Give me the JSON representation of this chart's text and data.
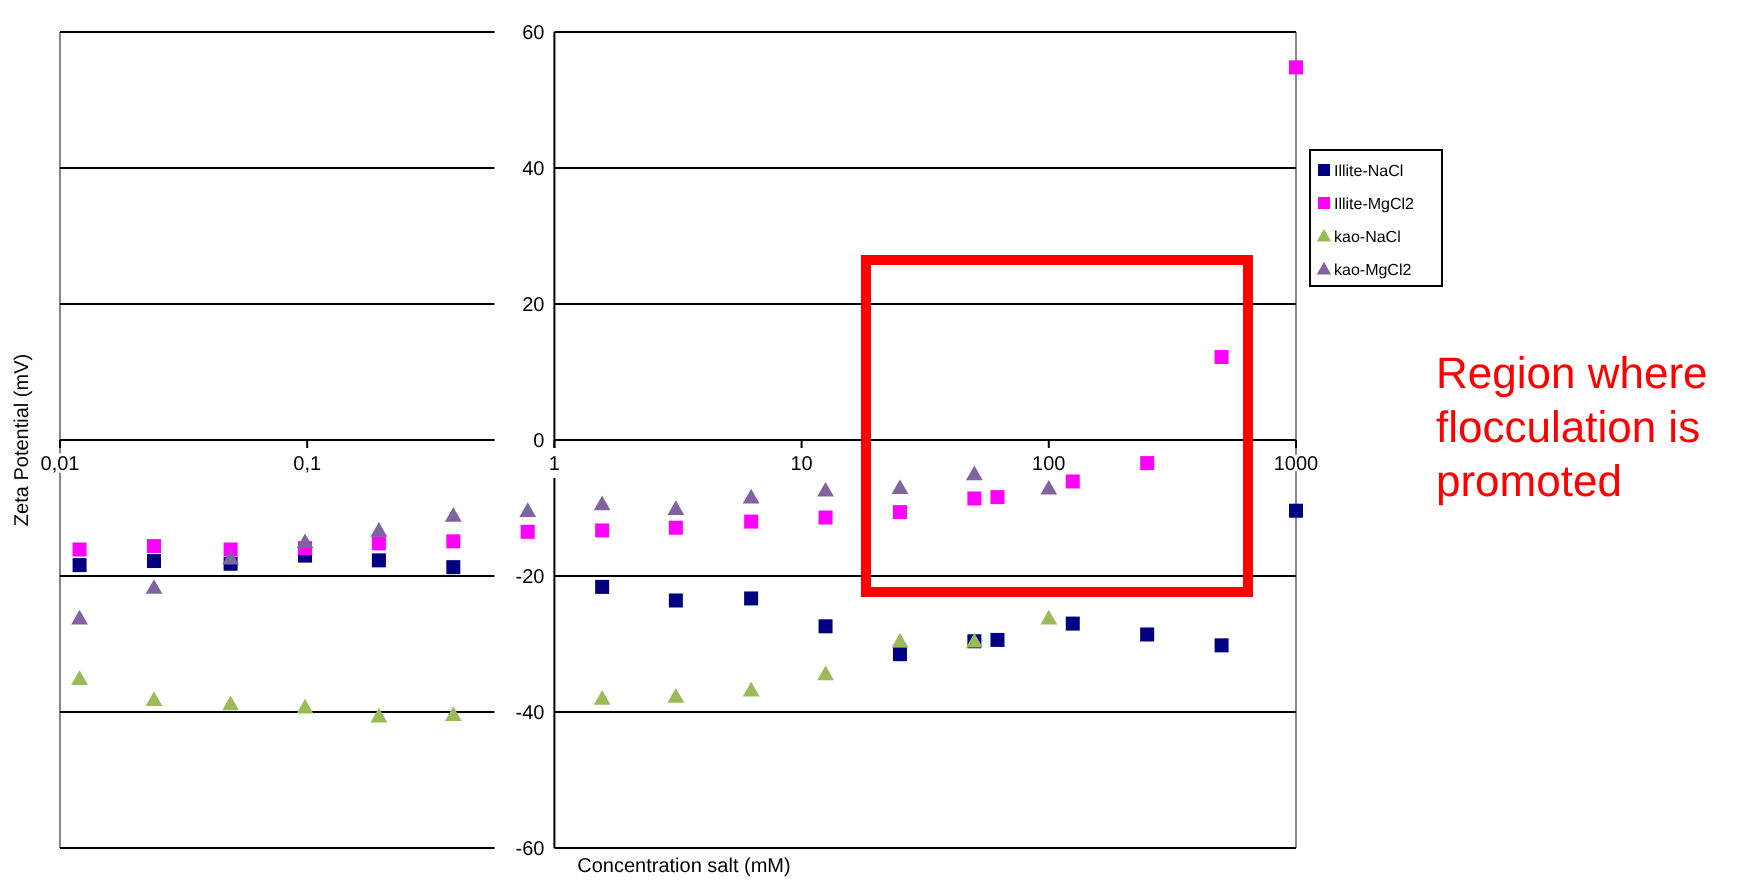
{
  "chart_data": {
    "type": "scatter",
    "xlabel": "Concentration salt (mM)",
    "ylabel": "Zeta Potential (mV)",
    "log": "x",
    "xlim": [
      0.01,
      1000
    ],
    "xticks": [
      {
        "value": 0.01,
        "label": "0,01"
      },
      {
        "value": 0.1,
        "label": "0,1"
      },
      1,
      10,
      100,
      1000
    ],
    "ylim": [
      -60,
      60
    ],
    "yticks": [
      -60,
      -40,
      -20,
      0,
      20,
      40,
      60
    ],
    "grid": "y",
    "legend": "right",
    "annotations": [
      "Region where flocculation is promoted"
    ],
    "series": [
      {
        "name": "Illite-NaCl",
        "color": "#000080",
        "marker": "square",
        "x": [
          0.012,
          0.024,
          0.049,
          0.098,
          0.195,
          0.39,
          1.56,
          3.1,
          6.25,
          12.5,
          25,
          50,
          62,
          125,
          250,
          500,
          1000
        ],
        "values": [
          -18.4,
          -17.8,
          -18.2,
          -17.0,
          -17.7,
          -18.7,
          -21.6,
          -23.6,
          -23.3,
          -27.4,
          -31.5,
          -29.6,
          -29.4,
          -27.0,
          -28.6,
          -30.2,
          -10.4
        ]
      },
      {
        "name": "Illite-MgCl2",
        "color": "#ff00ff",
        "marker": "square",
        "x": [
          0.012,
          0.024,
          0.049,
          0.098,
          0.195,
          0.39,
          0.78,
          1.56,
          3.1,
          6.25,
          12.5,
          25,
          50,
          62,
          125,
          250,
          500,
          1000
        ],
        "values": [
          -16.1,
          -15.6,
          -16.1,
          -15.9,
          -15.2,
          -14.9,
          -13.5,
          -13.3,
          -12.9,
          -12.0,
          -11.4,
          -10.6,
          -8.6,
          -8.4,
          -6.1,
          -3.4,
          12.2,
          54.8
        ]
      },
      {
        "name": "kao-NaCl",
        "color": "#9bbb59",
        "marker": "triangle",
        "x": [
          0.012,
          0.024,
          0.049,
          0.098,
          0.195,
          0.39,
          1.56,
          3.1,
          6.25,
          12.5,
          25,
          50,
          100
        ],
        "values": [
          -35.1,
          -38.2,
          -38.8,
          -39.3,
          -40.6,
          -40.4,
          -38.0,
          -37.7,
          -36.8,
          -34.4,
          -29.6,
          -29.6,
          -26.2
        ]
      },
      {
        "name": "kao-MgCl2",
        "color": "#8064a2",
        "marker": "triangle",
        "x": [
          0.012,
          0.024,
          0.049,
          0.098,
          0.195,
          0.39,
          0.78,
          1.56,
          3.1,
          6.25,
          12.5,
          25,
          50,
          100
        ],
        "values": [
          -26.2,
          -21.7,
          -17.4,
          -15.0,
          -13.3,
          -11.1,
          -10.4,
          -9.4,
          -10.1,
          -8.4,
          -7.4,
          -7.0,
          -5.0,
          -7.1
        ]
      }
    ]
  }
}
